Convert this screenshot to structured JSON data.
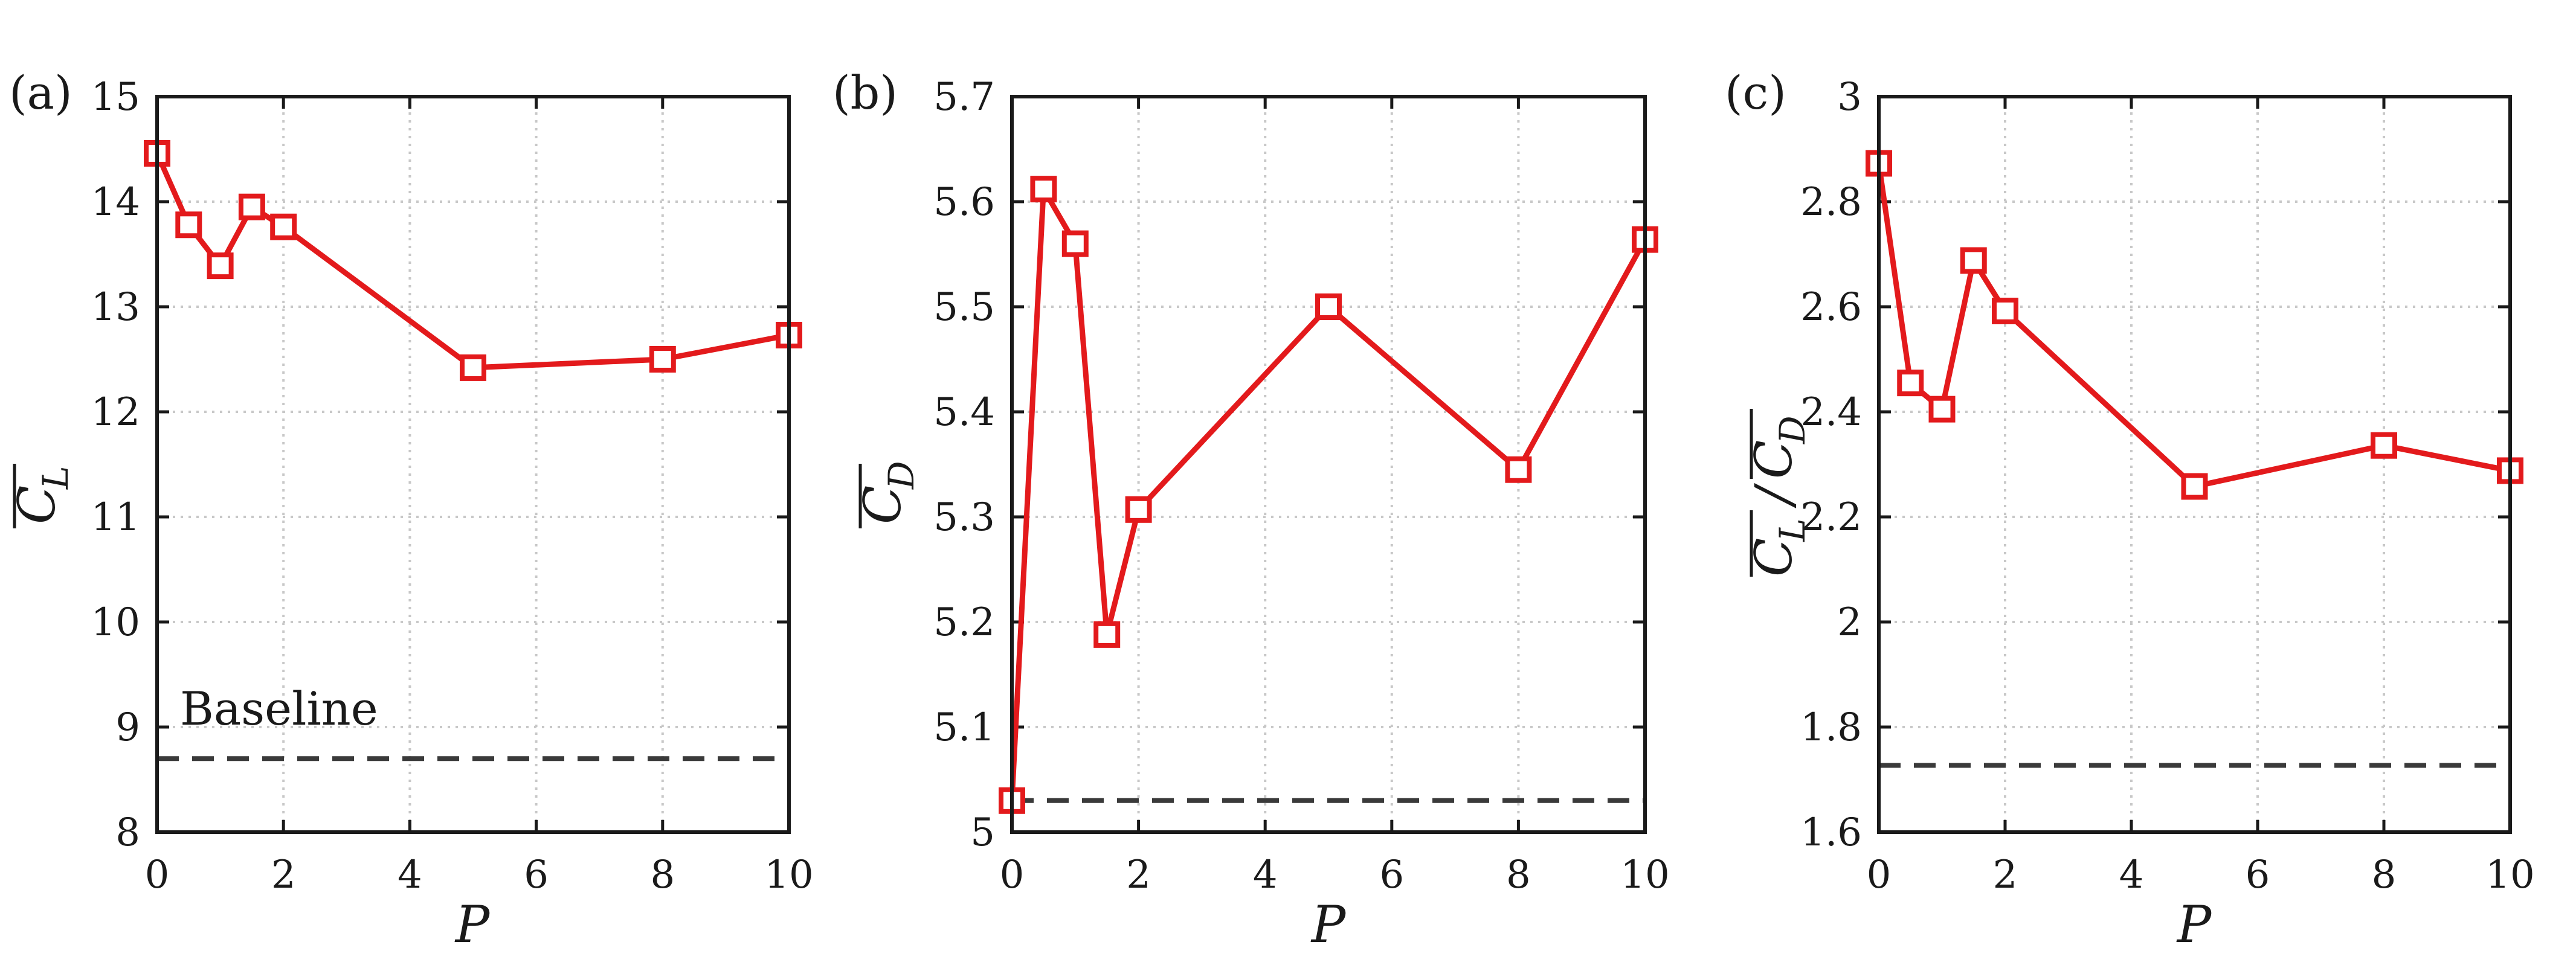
{
  "colors": {
    "series": "#e31a1c",
    "baseline": "#3a3a3a",
    "grid": "#c8c8c8",
    "axis": "#1a1a1a"
  },
  "chart_data": [
    {
      "panel": "(a)",
      "type": "line",
      "xlabel": "P",
      "ylabel": "C_L (overline)",
      "xlim": [
        0,
        10
      ],
      "ylim": [
        8,
        15
      ],
      "x_ticks": [
        0,
        2,
        4,
        6,
        8,
        10
      ],
      "y_ticks": [
        8,
        9,
        10,
        11,
        12,
        13,
        14,
        15
      ],
      "y_tick_labels": [
        "8",
        "9",
        "10",
        "11",
        "12",
        "13",
        "14",
        "15"
      ],
      "x_tick_labels": [
        "0",
        "2",
        "4",
        "6",
        "8",
        "10"
      ],
      "grid": true,
      "series": [
        {
          "marker": "square",
          "x": [
            0,
            0.5,
            1,
            1.5,
            2,
            5,
            8,
            10
          ],
          "y": [
            14.46,
            13.78,
            13.39,
            13.95,
            13.76,
            12.42,
            12.5,
            12.73
          ]
        }
      ],
      "baseline": {
        "value": 8.7,
        "style": "dashed",
        "label": "Baseline"
      }
    },
    {
      "panel": "(b)",
      "type": "line",
      "xlabel": "P",
      "ylabel": "C_D (overline)",
      "xlim": [
        0,
        10
      ],
      "ylim": [
        5,
        5.7
      ],
      "x_ticks": [
        0,
        2,
        4,
        6,
        8,
        10
      ],
      "y_ticks": [
        5,
        5.1,
        5.2,
        5.3,
        5.4,
        5.5,
        5.6,
        5.7
      ],
      "y_tick_labels": [
        "5",
        "5.1",
        "5.2",
        "5.3",
        "5.4",
        "5.5",
        "5.6",
        "5.7"
      ],
      "x_tick_labels": [
        "0",
        "2",
        "4",
        "6",
        "8",
        "10"
      ],
      "grid": true,
      "series": [
        {
          "marker": "square",
          "x": [
            0,
            0.5,
            1,
            1.5,
            2,
            5,
            8,
            10
          ],
          "y": [
            5.03,
            5.612,
            5.56,
            5.188,
            5.307,
            5.5,
            5.345,
            5.564
          ]
        }
      ],
      "baseline": {
        "value": 5.03,
        "style": "dashed"
      }
    },
    {
      "panel": "(c)",
      "type": "line",
      "xlabel": "P",
      "ylabel": "C_L / C_D (overline)",
      "xlim": [
        0,
        10
      ],
      "ylim": [
        1.6,
        3
      ],
      "x_ticks": [
        0,
        2,
        4,
        6,
        8,
        10
      ],
      "y_ticks": [
        1.6,
        1.8,
        2,
        2.2,
        2.4,
        2.6,
        2.8,
        3
      ],
      "y_tick_labels": [
        "1.6",
        "1.8",
        "2",
        "2.2",
        "2.4",
        "2.6",
        "2.8",
        "3"
      ],
      "x_tick_labels": [
        "0",
        "2",
        "4",
        "6",
        "8",
        "10"
      ],
      "grid": true,
      "series": [
        {
          "marker": "square",
          "x": [
            0,
            0.5,
            1,
            1.5,
            2,
            5,
            8,
            10
          ],
          "y": [
            2.873,
            2.455,
            2.405,
            2.688,
            2.592,
            2.258,
            2.336,
            2.288
          ]
        }
      ],
      "baseline": {
        "value": 1.727,
        "style": "dashed"
      }
    }
  ]
}
